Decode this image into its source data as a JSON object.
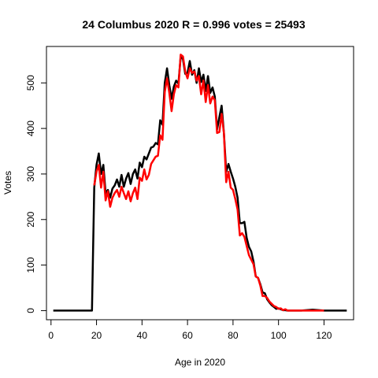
{
  "chart_data": {
    "type": "line",
    "title": "24 Columbus 2020 R = 0.996 votes = 25493",
    "xlabel": "Age in 2020",
    "ylabel": "Votes",
    "xlim": [
      -2,
      133
    ],
    "ylim": [
      -20,
      580
    ],
    "x_ticks": [
      0,
      20,
      40,
      60,
      80,
      100,
      120
    ],
    "y_ticks": [
      0,
      100,
      200,
      300,
      400,
      500
    ],
    "grid": false,
    "legend": "none",
    "series": [
      {
        "color": "#000000",
        "points": [
          [
            1,
            0
          ],
          [
            18,
            0
          ],
          [
            19,
            270
          ],
          [
            20,
            320
          ],
          [
            21,
            345
          ],
          [
            22,
            300
          ],
          [
            23,
            320
          ],
          [
            24,
            258
          ],
          [
            25,
            265
          ],
          [
            26,
            248
          ],
          [
            27,
            268
          ],
          [
            28,
            275
          ],
          [
            29,
            288
          ],
          [
            30,
            272
          ],
          [
            31,
            298
          ],
          [
            32,
            272
          ],
          [
            33,
            290
          ],
          [
            34,
            302
          ],
          [
            35,
            278
          ],
          [
            36,
            300
          ],
          [
            37,
            310
          ],
          [
            38,
            290
          ],
          [
            39,
            325
          ],
          [
            40,
            315
          ],
          [
            41,
            338
          ],
          [
            42,
            332
          ],
          [
            43,
            345
          ],
          [
            44,
            358
          ],
          [
            45,
            360
          ],
          [
            46,
            368
          ],
          [
            47,
            365
          ],
          [
            48,
            418
          ],
          [
            49,
            408
          ],
          [
            50,
            500
          ],
          [
            51,
            532
          ],
          [
            52,
            495
          ],
          [
            53,
            465
          ],
          [
            54,
            492
          ],
          [
            55,
            505
          ],
          [
            56,
            498
          ],
          [
            57,
            558
          ],
          [
            58,
            552
          ],
          [
            59,
            520
          ],
          [
            60,
            522
          ],
          [
            61,
            548
          ],
          [
            62,
            518
          ],
          [
            63,
            528
          ],
          [
            64,
            500
          ],
          [
            65,
            532
          ],
          [
            66,
            502
          ],
          [
            67,
            518
          ],
          [
            68,
            482
          ],
          [
            69,
            515
          ],
          [
            70,
            478
          ],
          [
            71,
            490
          ],
          [
            72,
            470
          ],
          [
            73,
            398
          ],
          [
            74,
            425
          ],
          [
            75,
            450
          ],
          [
            76,
            390
          ],
          [
            77,
            305
          ],
          [
            78,
            322
          ],
          [
            79,
            305
          ],
          [
            80,
            290
          ],
          [
            81,
            272
          ],
          [
            82,
            248
          ],
          [
            83,
            192
          ],
          [
            84,
            192
          ],
          [
            85,
            195
          ],
          [
            86,
            160
          ],
          [
            87,
            140
          ],
          [
            88,
            130
          ],
          [
            89,
            108
          ],
          [
            90,
            75
          ],
          [
            91,
            72
          ],
          [
            92,
            58
          ],
          [
            93,
            40
          ],
          [
            94,
            38
          ],
          [
            95,
            25
          ],
          [
            96,
            18
          ],
          [
            97,
            12
          ],
          [
            98,
            8
          ],
          [
            99,
            4
          ],
          [
            100,
            5
          ],
          [
            101,
            3
          ],
          [
            102,
            1
          ],
          [
            103,
            1
          ],
          [
            104,
            0
          ],
          [
            110,
            0
          ],
          [
            115,
            2
          ],
          [
            120,
            0
          ],
          [
            130,
            0
          ]
        ]
      },
      {
        "color": "#ff0000",
        "points": [
          [
            19,
            275
          ],
          [
            20,
            305
          ],
          [
            21,
            320
          ],
          [
            22,
            270
          ],
          [
            23,
            305
          ],
          [
            24,
            242
          ],
          [
            25,
            262
          ],
          [
            26,
            228
          ],
          [
            27,
            248
          ],
          [
            28,
            258
          ],
          [
            29,
            265
          ],
          [
            30,
            250
          ],
          [
            31,
            272
          ],
          [
            32,
            258
          ],
          [
            33,
            245
          ],
          [
            34,
            262
          ],
          [
            35,
            240
          ],
          [
            36,
            258
          ],
          [
            37,
            270
          ],
          [
            38,
            245
          ],
          [
            39,
            292
          ],
          [
            40,
            285
          ],
          [
            41,
            310
          ],
          [
            42,
            288
          ],
          [
            43,
            298
          ],
          [
            44,
            322
          ],
          [
            45,
            330
          ],
          [
            46,
            338
          ],
          [
            47,
            340
          ],
          [
            48,
            385
          ],
          [
            49,
            375
          ],
          [
            50,
            480
          ],
          [
            51,
            510
          ],
          [
            52,
            478
          ],
          [
            53,
            438
          ],
          [
            54,
            475
          ],
          [
            55,
            495
          ],
          [
            56,
            490
          ],
          [
            57,
            562
          ],
          [
            58,
            558
          ],
          [
            59,
            525
          ],
          [
            60,
            510
          ],
          [
            61,
            532
          ],
          [
            62,
            522
          ],
          [
            63,
            525
          ],
          [
            64,
            505
          ],
          [
            65,
            515
          ],
          [
            66,
            475
          ],
          [
            67,
            505
          ],
          [
            68,
            458
          ],
          [
            69,
            495
          ],
          [
            70,
            455
          ],
          [
            71,
            470
          ],
          [
            72,
            462
          ],
          [
            73,
            390
          ],
          [
            74,
            392
          ],
          [
            75,
            432
          ],
          [
            76,
            390
          ],
          [
            77,
            282
          ],
          [
            78,
            305
          ],
          [
            79,
            270
          ],
          [
            80,
            265
          ],
          [
            81,
            245
          ],
          [
            82,
            222
          ],
          [
            83,
            165
          ],
          [
            84,
            170
          ],
          [
            85,
            162
          ],
          [
            86,
            142
          ],
          [
            87,
            122
          ],
          [
            88,
            112
          ],
          [
            89,
            102
          ],
          [
            90,
            75
          ],
          [
            91,
            72
          ],
          [
            92,
            55
          ],
          [
            93,
            32
          ],
          [
            94,
            32
          ],
          [
            95,
            28
          ],
          [
            96,
            20
          ],
          [
            97,
            15
          ],
          [
            98,
            10
          ],
          [
            99,
            8
          ],
          [
            100,
            4
          ],
          [
            101,
            5
          ],
          [
            102,
            1
          ],
          [
            103,
            3
          ],
          [
            104,
            0
          ],
          [
            110,
            0
          ],
          [
            120,
            0
          ]
        ]
      }
    ]
  }
}
